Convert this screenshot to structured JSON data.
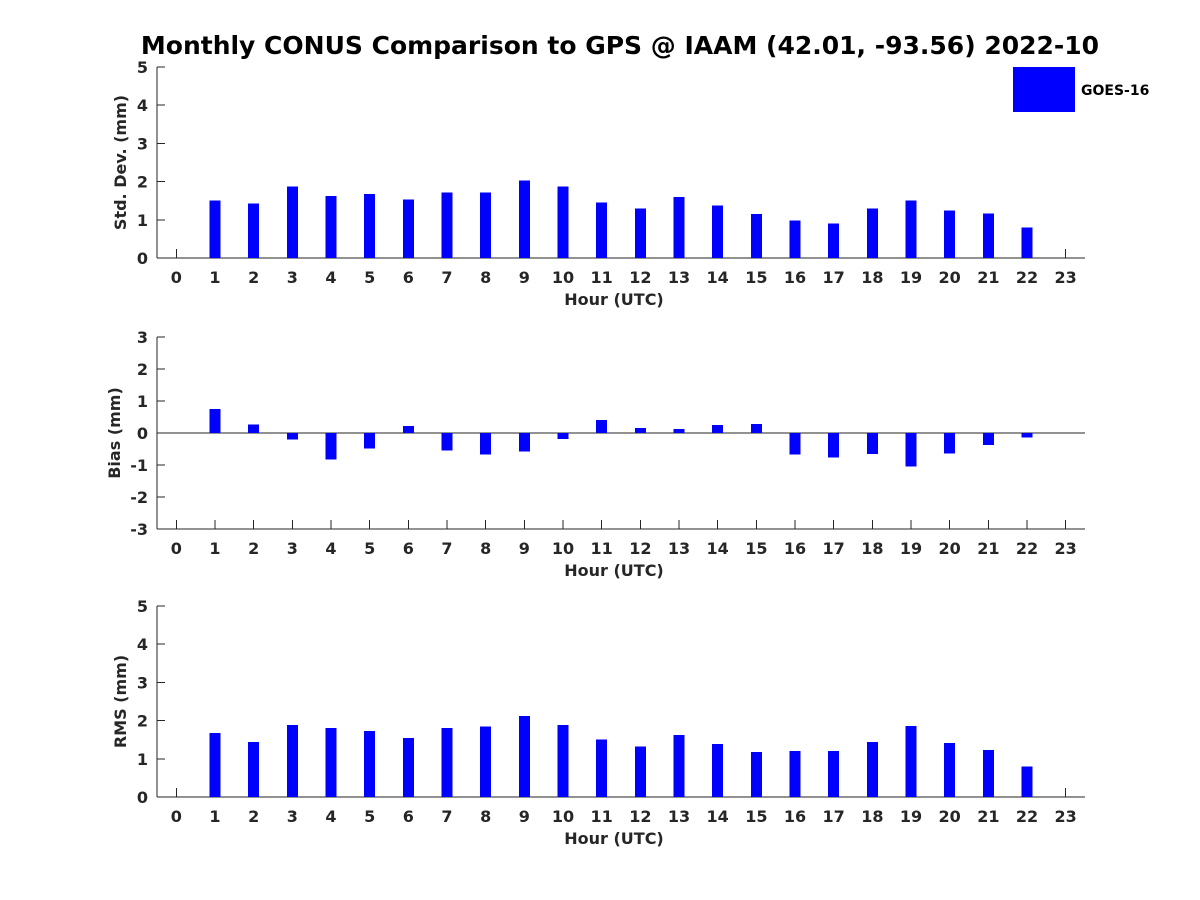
{
  "title": "Monthly CONUS Comparison to GPS @ IAAM (42.01, -93.56) 2022-10",
  "colors": {
    "bar": "#0000ff",
    "axis": "#262626"
  },
  "legend": {
    "label": "GOES-16",
    "placement": "top-right"
  },
  "chart_data": [
    {
      "type": "bar",
      "title": "",
      "xlabel": "Hour (UTC)",
      "ylabel": "Std. Dev. (mm)",
      "xlim": [
        -0.5,
        23.5
      ],
      "ylim": [
        0,
        5
      ],
      "yticks": [
        0,
        1,
        2,
        3,
        4,
        5
      ],
      "categories": [
        "0",
        "1",
        "2",
        "3",
        "4",
        "5",
        "6",
        "7",
        "8",
        "9",
        "10",
        "11",
        "12",
        "13",
        "14",
        "15",
        "16",
        "17",
        "18",
        "19",
        "20",
        "21",
        "22",
        "23"
      ],
      "series": [
        {
          "name": "GOES-16",
          "values": [
            null,
            1.5,
            1.43,
            1.87,
            1.62,
            1.67,
            1.53,
            1.72,
            1.72,
            2.03,
            1.87,
            1.45,
            1.3,
            1.6,
            1.37,
            1.15,
            0.98,
            0.9,
            1.3,
            1.5,
            1.24,
            1.16,
            0.8,
            null
          ]
        }
      ],
      "zero_line": false
    },
    {
      "type": "bar",
      "title": "",
      "xlabel": "Hour (UTC)",
      "ylabel": "Bias (mm)",
      "xlim": [
        -0.5,
        23.5
      ],
      "ylim": [
        -3,
        3
      ],
      "yticks": [
        -3,
        -2,
        -1,
        0,
        1,
        2,
        3
      ],
      "categories": [
        "0",
        "1",
        "2",
        "3",
        "4",
        "5",
        "6",
        "7",
        "8",
        "9",
        "10",
        "11",
        "12",
        "13",
        "14",
        "15",
        "16",
        "17",
        "18",
        "19",
        "20",
        "21",
        "22",
        "23"
      ],
      "series": [
        {
          "name": "GOES-16",
          "values": [
            null,
            0.75,
            0.27,
            -0.2,
            -0.83,
            -0.48,
            0.22,
            -0.55,
            -0.67,
            -0.58,
            -0.18,
            0.4,
            0.16,
            0.12,
            0.25,
            0.28,
            -0.67,
            -0.77,
            -0.65,
            -1.05,
            -0.64,
            -0.38,
            -0.14,
            null
          ]
        }
      ],
      "zero_line": true
    },
    {
      "type": "bar",
      "title": "",
      "xlabel": "Hour (UTC)",
      "ylabel": "RMS (mm)",
      "xlim": [
        -0.5,
        23.5
      ],
      "ylim": [
        0,
        5
      ],
      "yticks": [
        0,
        1,
        2,
        3,
        4,
        5
      ],
      "categories": [
        "0",
        "1",
        "2",
        "3",
        "4",
        "5",
        "6",
        "7",
        "8",
        "9",
        "10",
        "11",
        "12",
        "13",
        "14",
        "15",
        "16",
        "17",
        "18",
        "19",
        "20",
        "21",
        "22",
        "23"
      ],
      "series": [
        {
          "name": "GOES-16",
          "values": [
            null,
            1.67,
            1.44,
            1.88,
            1.8,
            1.73,
            1.55,
            1.8,
            1.85,
            2.12,
            1.88,
            1.5,
            1.32,
            1.62,
            1.39,
            1.18,
            1.2,
            1.2,
            1.44,
            1.86,
            1.42,
            1.23,
            0.8,
            null
          ]
        }
      ],
      "zero_line": false
    }
  ]
}
